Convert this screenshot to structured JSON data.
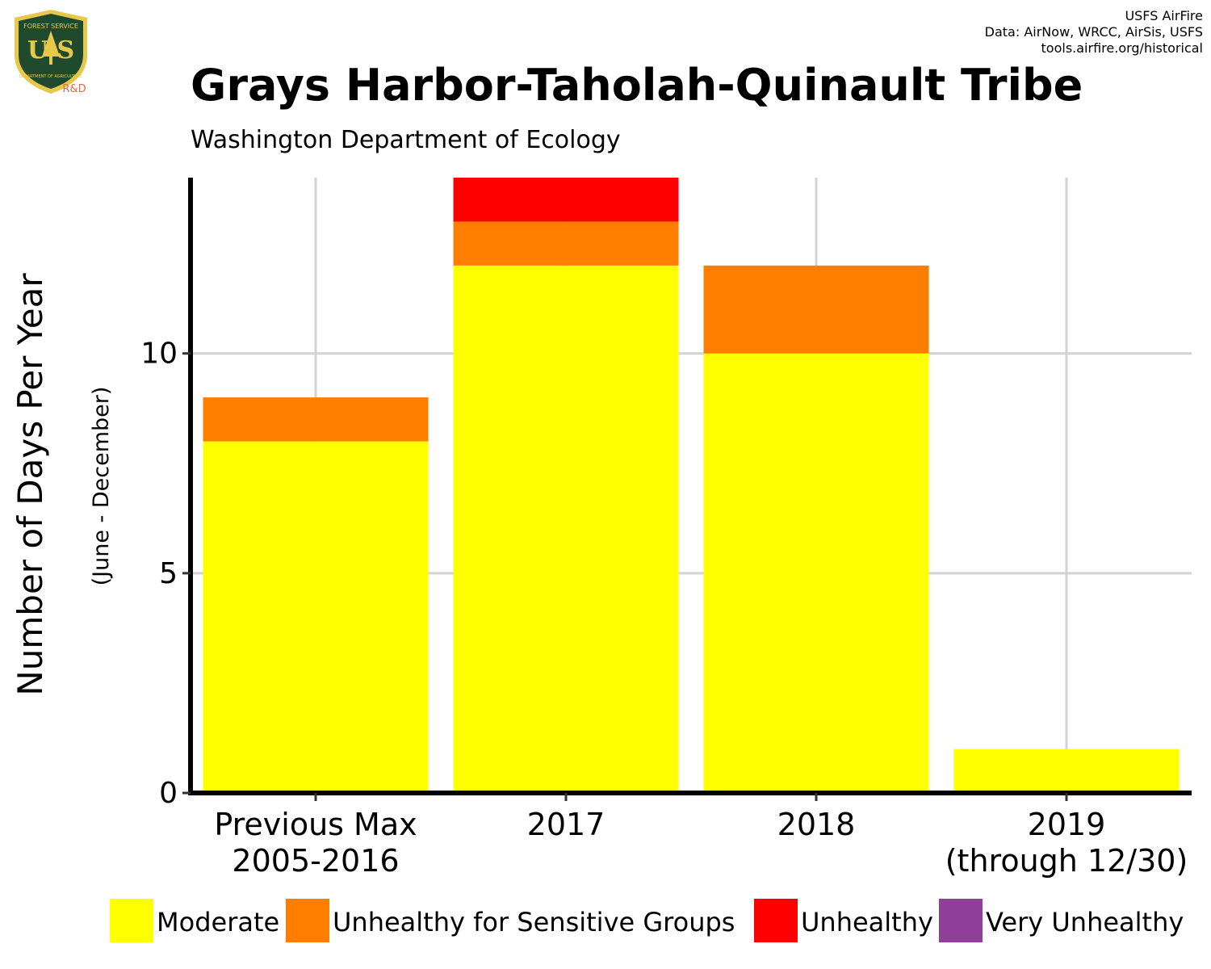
{
  "header": {
    "title": "Grays Harbor-Taholah-Quinault Tribe",
    "subtitle": "Washington Department of Ecology",
    "credits": [
      "USFS AirFire",
      "Data: AirNow, WRCC, AirSis, USFS",
      "tools.airfire.org/historical"
    ]
  },
  "logo": {
    "top_text": "FOREST SERVICE",
    "letters": "U S",
    "bottom_text": "DEPARTMENT OF AGRICULTURE",
    "tag": "R&D"
  },
  "chart_data": {
    "type": "bar",
    "stacked": true,
    "categories": [
      [
        "Previous Max",
        "2005-2016"
      ],
      [
        "2017"
      ],
      [
        "2018"
      ],
      [
        "2019",
        "(through 12/30)"
      ]
    ],
    "series": [
      {
        "name": "Moderate",
        "color": "#FFFF00",
        "values": [
          8,
          12,
          10,
          1
        ]
      },
      {
        "name": "Unhealthy for Sensitive Groups",
        "color": "#FF7E00",
        "values": [
          1,
          1,
          2,
          0
        ]
      },
      {
        "name": "Unhealthy",
        "color": "#FF0000",
        "values": [
          0,
          1,
          0,
          0
        ]
      },
      {
        "name": "Very Unhealthy",
        "color": "#8F3F97",
        "values": [
          0,
          0,
          0,
          0
        ]
      }
    ],
    "ylabel": "Number of Days Per Year",
    "ylabel_sub": "(June - December)",
    "yticks": [
      0,
      5,
      10
    ],
    "ylim": [
      0,
      14
    ],
    "grid": true,
    "legend_position": "bottom"
  }
}
